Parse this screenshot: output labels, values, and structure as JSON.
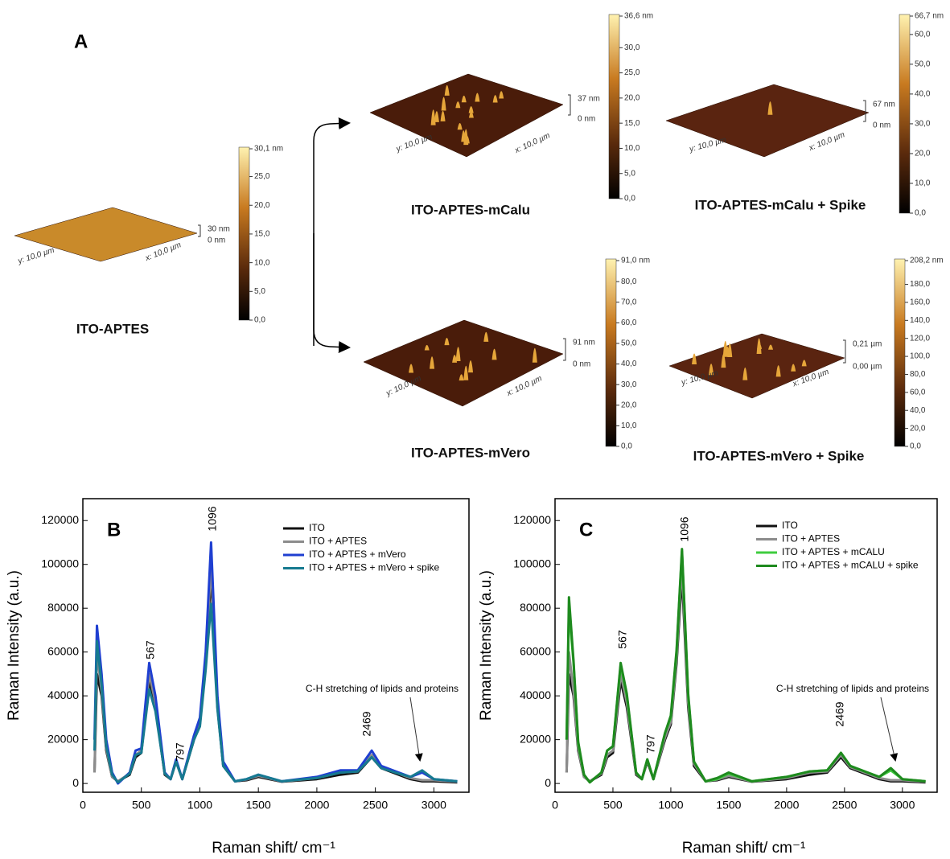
{
  "panel_a": {
    "label": "A",
    "images": [
      {
        "caption": "ITO-APTES",
        "scale": [
          "30,1 nm",
          "25,0",
          "20,0",
          "15,0",
          "10,0",
          "5,0",
          "0,0"
        ],
        "height": [
          "30 nm",
          "0 nm"
        ],
        "axes": [
          "y: 10,0 µm",
          "x: 10,0 µm"
        ]
      },
      {
        "caption": "ITO-APTES-mCalu",
        "scale": [
          "36,6 nm",
          "30,0",
          "25,0",
          "20,0",
          "15,0",
          "10,0",
          "5,0",
          "0,0"
        ],
        "height": [
          "37 nm",
          "0 nm"
        ],
        "axes": [
          "y: 10,0 µm",
          "x: 10,0 µm"
        ]
      },
      {
        "caption": "ITO-APTES-mCalu + Spike",
        "scale": [
          "66,7 nm",
          "60,0",
          "50,0",
          "40,0",
          "30,0",
          "20,0",
          "10,0",
          "0,0"
        ],
        "height": [
          "67 nm",
          "0 nm"
        ],
        "axes": [
          "y: 10,0 µm",
          "x: 10,0 µm"
        ]
      },
      {
        "caption": "ITO-APTES-mVero",
        "scale": [
          "91,0 nm",
          "80,0",
          "70,0",
          "60,0",
          "50,0",
          "40,0",
          "30,0",
          "20,0",
          "10,0",
          "0,0"
        ],
        "height": [
          "91 nm",
          "0 nm"
        ],
        "axes": [
          "y: 10,0 µm",
          "x: 10,0 µm"
        ]
      },
      {
        "caption": "ITO-APTES-mVero + Spike",
        "scale": [
          "208,2 nm",
          "180,0",
          "160,0",
          "140,0",
          "120,0",
          "100,0",
          "80,0",
          "60,0",
          "40,0",
          "20,0",
          "0,0"
        ],
        "height": [
          "0,21 µm",
          "0,00 µm"
        ],
        "axes": [
          "y: 10,0 µm",
          "x: 10,0 µm"
        ]
      }
    ]
  },
  "chart_data": [
    {
      "type": "line",
      "panel_label": "B",
      "xlabel": "Raman shift/ cm⁻¹",
      "ylabel": "Raman Intensity (a.u.)",
      "xlim": [
        0,
        3300
      ],
      "ylim": [
        -4000,
        130000
      ],
      "xticks": [
        0,
        500,
        1000,
        1500,
        2000,
        2500,
        3000
      ],
      "yticks": [
        0,
        20000,
        40000,
        60000,
        80000,
        100000,
        120000
      ],
      "annotations": [
        "567",
        "797",
        "1096",
        "2469"
      ],
      "annotation": "C-H stretching of lipids and proteins",
      "x": [
        100,
        120,
        160,
        200,
        250,
        300,
        400,
        450,
        500,
        567,
        620,
        700,
        750,
        797,
        850,
        950,
        1000,
        1050,
        1096,
        1150,
        1200,
        1300,
        1400,
        1500,
        1700,
        2000,
        2200,
        2350,
        2469,
        2550,
        2700,
        2800,
        2900,
        3000,
        3200
      ],
      "series": [
        {
          "name": "ITO",
          "color": "#111111",
          "values": [
            5000,
            50000,
            40000,
            15000,
            3000,
            1000,
            4000,
            12000,
            14000,
            47000,
            35000,
            4000,
            2000,
            10000,
            2000,
            20000,
            27000,
            55000,
            95000,
            35000,
            8000,
            1000,
            1500,
            3000,
            800,
            2000,
            4000,
            5000,
            12000,
            7000,
            4000,
            2000,
            1000,
            1000,
            500
          ]
        },
        {
          "name": "ITO + APTES",
          "color": "#8c8c8c",
          "values": [
            5000,
            60000,
            42000,
            16000,
            3000,
            1000,
            4500,
            13000,
            15000,
            50000,
            37000,
            4500,
            2000,
            10500,
            2000,
            21000,
            28000,
            57000,
            100000,
            37000,
            9000,
            1000,
            1800,
            3500,
            900,
            2500,
            5000,
            5500,
            13000,
            7500,
            4500,
            2500,
            1500,
            1500,
            800
          ]
        },
        {
          "name": "ITO + APTES + mVero",
          "color": "#1f3fd1",
          "values": [
            20000,
            72000,
            50000,
            20000,
            5000,
            0,
            5000,
            15000,
            16000,
            55000,
            40000,
            5000,
            2000,
            11000,
            2000,
            22000,
            30000,
            60000,
            110000,
            40000,
            10000,
            1000,
            2000,
            4000,
            1000,
            3000,
            6000,
            6000,
            15000,
            8000,
            5000,
            3000,
            5000,
            2000,
            1000
          ]
        },
        {
          "name": "ITO + APTES + mVero + spike",
          "color": "#167a90",
          "values": [
            15000,
            65000,
            45000,
            17000,
            4000,
            500,
            4500,
            13000,
            14000,
            43000,
            33000,
            4500,
            2000,
            10000,
            2000,
            20000,
            26000,
            52000,
            82000,
            34000,
            8000,
            1000,
            2000,
            4000,
            1000,
            2500,
            5000,
            5500,
            12000,
            7000,
            4500,
            3000,
            6000,
            2000,
            1000
          ]
        }
      ]
    },
    {
      "type": "line",
      "panel_label": "C",
      "xlabel": "Raman shift/ cm⁻¹",
      "ylabel": "Raman Intensity (a.u.)",
      "xlim": [
        0,
        3300
      ],
      "ylim": [
        -4000,
        130000
      ],
      "xticks": [
        0,
        500,
        1000,
        1500,
        2000,
        2500,
        3000
      ],
      "yticks": [
        0,
        20000,
        40000,
        60000,
        80000,
        100000,
        120000
      ],
      "annotations": [
        "567",
        "797",
        "1096",
        "2469"
      ],
      "annotation": "C-H stretching of lipids and proteins",
      "x": [
        100,
        120,
        160,
        200,
        250,
        300,
        400,
        450,
        500,
        567,
        620,
        700,
        750,
        797,
        850,
        950,
        1000,
        1050,
        1096,
        1150,
        1200,
        1300,
        1400,
        1500,
        1700,
        2000,
        2200,
        2350,
        2469,
        2550,
        2700,
        2800,
        2900,
        3000,
        3200
      ],
      "series": [
        {
          "name": "ITO",
          "color": "#111111",
          "values": [
            5000,
            50000,
            40000,
            15000,
            3000,
            1000,
            4000,
            12000,
            14000,
            47000,
            35000,
            4000,
            2000,
            10000,
            2000,
            20000,
            27000,
            55000,
            95000,
            35000,
            8000,
            1000,
            1500,
            3000,
            800,
            2000,
            4000,
            5000,
            12000,
            7000,
            4000,
            2000,
            1000,
            1000,
            500
          ]
        },
        {
          "name": "ITO + APTES",
          "color": "#8c8c8c",
          "values": [
            5000,
            60000,
            42000,
            16000,
            3000,
            1000,
            4500,
            13000,
            15000,
            50000,
            37000,
            4500,
            2000,
            10500,
            2000,
            21000,
            28000,
            57000,
            100000,
            37000,
            9000,
            1000,
            1800,
            3500,
            900,
            2500,
            5000,
            5500,
            13000,
            7500,
            4500,
            2500,
            1500,
            1500,
            800
          ]
        },
        {
          "name": "ITO + APTES + mCALU",
          "color": "#3fcc3f",
          "values": [
            20000,
            80000,
            55000,
            18000,
            4000,
            500,
            5000,
            15000,
            17000,
            54000,
            40000,
            5000,
            2000,
            11000,
            2000,
            23000,
            30000,
            60000,
            106000,
            40000,
            10000,
            1000,
            2000,
            4500,
            1000,
            3000,
            5500,
            6000,
            14000,
            8000,
            5000,
            3000,
            6000,
            2000,
            1000
          ]
        },
        {
          "name": "ITO + APTES + mCALU + spike",
          "color": "#1e8a1e",
          "values": [
            20000,
            85000,
            56000,
            19000,
            4000,
            500,
            5000,
            15000,
            17000,
            55000,
            41000,
            5000,
            2000,
            11000,
            2000,
            23000,
            31000,
            61000,
            107000,
            41000,
            10000,
            1000,
            2500,
            5000,
            1000,
            3000,
            5500,
            6000,
            14000,
            8000,
            5000,
            3000,
            7000,
            2000,
            1000
          ]
        }
      ]
    }
  ]
}
